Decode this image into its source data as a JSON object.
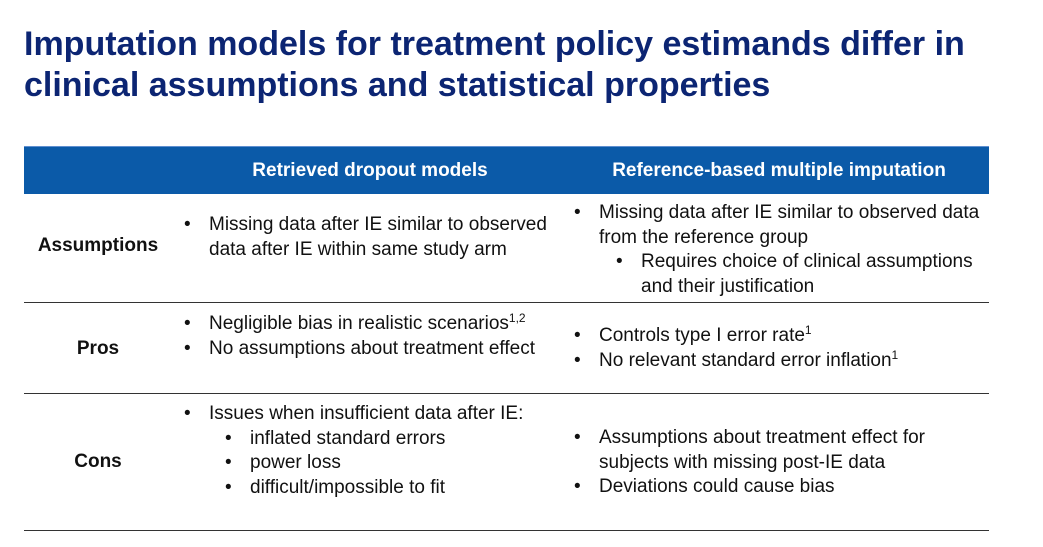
{
  "slide": {
    "title": "Imputation models for treatment policy estimands differ in clinical assumptions and statistical properties"
  },
  "table": {
    "columns": [
      "",
      "Retrieved dropout models",
      "Reference-based multiple imputation"
    ],
    "rows": {
      "assumptions": {
        "label": "Assumptions",
        "retrieved": [
          "Missing data after IE similar to observed data after IE within same study arm"
        ],
        "reference": {
          "item": "Missing data after IE similar to observed data from the reference group",
          "sub": "Requires choice of clinical assumptions and their justification"
        }
      },
      "pros": {
        "label": "Pros",
        "retrieved": {
          "item1": "Negligible bias in realistic scenarios",
          "item1_sup": "1,2",
          "item2": "No assumptions about treatment effect"
        },
        "reference": {
          "item1": "Controls type I error rate",
          "item1_sup": "1",
          "item2": "No relevant standard error inflation",
          "item2_sup": "1"
        }
      },
      "cons": {
        "label": "Cons",
        "retrieved": {
          "item": "Issues when insufficient data after IE:",
          "sub": [
            "inflated standard errors",
            "power loss",
            "difficult/impossible to fit"
          ]
        },
        "reference": {
          "item1": "Assumptions about treatment effect for subjects with missing post-IE data",
          "item2": "Deviations could cause bias"
        }
      }
    }
  }
}
